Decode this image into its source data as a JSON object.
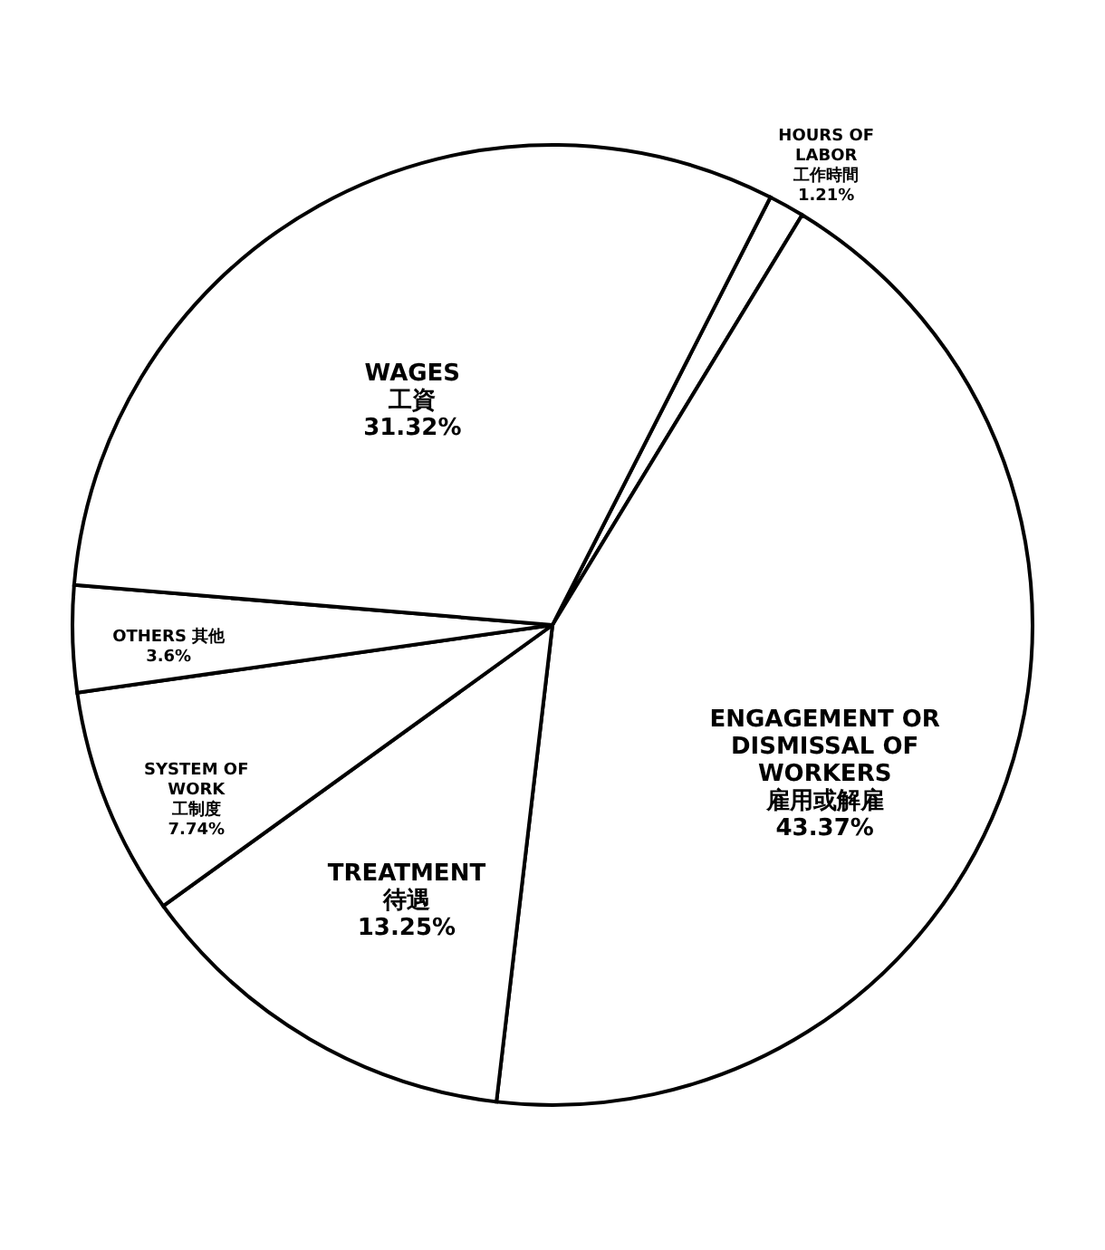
{
  "chart_data": {
    "type": "pie",
    "categories": [
      "HOURS OF LABOR 工作時間",
      "ENGAGEMENT OR DISMISSAL OF WORKERS 雇用或解雇",
      "TREATMENT 待遇",
      "SYSTEM OF WORK 工制度",
      "OTHERS 其他",
      "WAGES 工資"
    ],
    "values": [
      1.21,
      43.37,
      13.25,
      7.74,
      3.6,
      31.32
    ],
    "value_labels": [
      "1.21%",
      "43.37%",
      "13.25%",
      "7.74%",
      "3.6%",
      "31.32%"
    ],
    "colors": [
      "#ffffff",
      "#ffffff",
      "#ffffff",
      "#ffffff",
      "#ffffff",
      "#ffffff"
    ]
  }
}
